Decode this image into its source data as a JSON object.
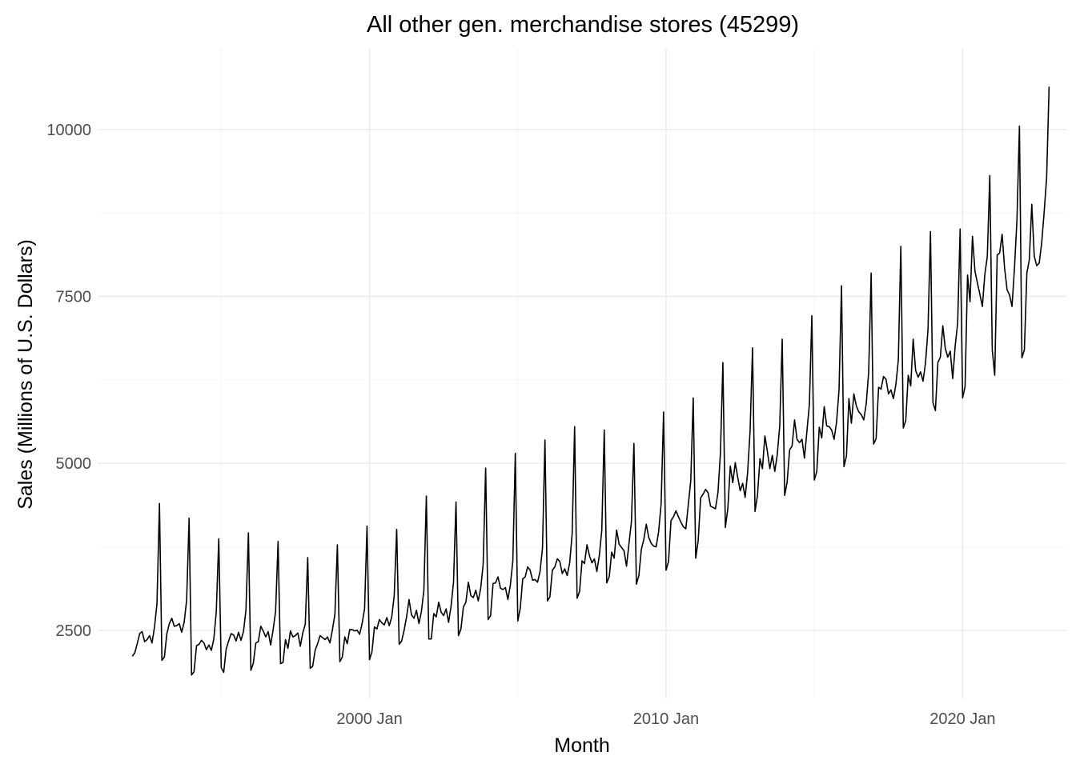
{
  "chart_data": {
    "type": "line",
    "title": "All other gen. merchandise stores (45299)",
    "xlabel": "Month",
    "ylabel": "Sales (Millions of U.S. Dollars)",
    "xlim": [
      "1990-11",
      "2023-07"
    ],
    "ylim": [
      1480,
      11220
    ],
    "x_ticks": [
      {
        "value": "2000-01",
        "label": "2000 Jan"
      },
      {
        "value": "2010-01",
        "label": "2010 Jan"
      },
      {
        "value": "2020-01",
        "label": "2020 Jan"
      }
    ],
    "x_minor_grid": [
      "1995-01",
      "2005-01",
      "2015-01"
    ],
    "y_ticks": [
      {
        "value": 2500,
        "label": "2500"
      },
      {
        "value": 5000,
        "label": "5000"
      },
      {
        "value": 7500,
        "label": "7500"
      },
      {
        "value": 10000,
        "label": "10000"
      }
    ],
    "y_minor_grid": [
      3750,
      6250,
      8750
    ],
    "grid": true,
    "legend": "none",
    "series": [
      {
        "name": "",
        "start": "1992-01",
        "frequency": "monthly",
        "color": "#000000",
        "values": [
          2110,
          2160,
          2300,
          2450,
          2480,
          2330,
          2360,
          2420,
          2310,
          2550,
          2900,
          4400,
          2050,
          2100,
          2450,
          2600,
          2680,
          2560,
          2570,
          2600,
          2470,
          2620,
          2950,
          4180,
          1830,
          1880,
          2270,
          2290,
          2350,
          2310,
          2210,
          2280,
          2200,
          2370,
          2780,
          3870,
          1940,
          1870,
          2220,
          2340,
          2450,
          2430,
          2340,
          2470,
          2350,
          2480,
          2800,
          3960,
          1900,
          2010,
          2310,
          2330,
          2560,
          2490,
          2400,
          2480,
          2280,
          2510,
          2780,
          3830,
          2000,
          2020,
          2360,
          2230,
          2490,
          2400,
          2420,
          2460,
          2260,
          2460,
          2590,
          3590,
          1930,
          1960,
          2200,
          2300,
          2420,
          2390,
          2360,
          2400,
          2310,
          2510,
          2740,
          3780,
          2030,
          2100,
          2400,
          2300,
          2510,
          2510,
          2490,
          2500,
          2440,
          2600,
          2820,
          4060,
          2060,
          2180,
          2550,
          2520,
          2660,
          2610,
          2580,
          2690,
          2570,
          2700,
          3020,
          4010,
          2290,
          2340,
          2500,
          2700,
          2960,
          2730,
          2680,
          2800,
          2600,
          2780,
          3100,
          4510,
          2370,
          2370,
          2750,
          2700,
          2920,
          2770,
          2720,
          2820,
          2620,
          2860,
          3220,
          4420,
          2420,
          2520,
          2850,
          2920,
          3220,
          3020,
          2990,
          3100,
          2940,
          3130,
          3490,
          4930,
          2660,
          2720,
          3200,
          3210,
          3300,
          3130,
          3110,
          3140,
          2960,
          3180,
          3540,
          5150,
          2640,
          2830,
          3270,
          3300,
          3450,
          3400,
          3250,
          3260,
          3220,
          3380,
          3730,
          5350,
          2940,
          3000,
          3400,
          3450,
          3570,
          3530,
          3350,
          3420,
          3320,
          3510,
          3940,
          5550,
          2980,
          3080,
          3540,
          3500,
          3780,
          3620,
          3510,
          3570,
          3380,
          3620,
          4000,
          5500,
          3210,
          3300,
          3670,
          3580,
          4000,
          3790,
          3740,
          3690,
          3460,
          3800,
          4130,
          5300,
          3190,
          3320,
          3710,
          3860,
          4090,
          3890,
          3800,
          3760,
          3750,
          3980,
          4390,
          5770,
          3400,
          3530,
          4140,
          4200,
          4290,
          4200,
          4120,
          4050,
          4020,
          4380,
          4740,
          5980,
          3580,
          3840,
          4480,
          4540,
          4610,
          4560,
          4360,
          4340,
          4320,
          4560,
          5150,
          6510,
          4040,
          4320,
          4960,
          4710,
          5010,
          4790,
          4590,
          4700,
          4490,
          4860,
          5480,
          6730,
          4280,
          4520,
          5070,
          4920,
          5410,
          5180,
          4920,
          5120,
          4880,
          5130,
          5560,
          6860,
          4520,
          4720,
          5200,
          5260,
          5650,
          5360,
          5310,
          5360,
          5080,
          5480,
          5880,
          7210,
          4750,
          4880,
          5540,
          5380,
          5850,
          5560,
          5550,
          5500,
          5360,
          5620,
          6100,
          7660,
          4950,
          5110,
          5970,
          5600,
          6040,
          5860,
          5770,
          5730,
          5650,
          5890,
          6370,
          7850,
          5290,
          5370,
          6140,
          6110,
          6300,
          6260,
          6040,
          6100,
          5970,
          6180,
          6550,
          8250,
          5530,
          5640,
          6320,
          6160,
          6860,
          6390,
          6290,
          6370,
          6230,
          6510,
          7000,
          8470,
          5910,
          5790,
          6510,
          6590,
          7060,
          6720,
          6590,
          6680,
          6270,
          6760,
          7100,
          8510,
          5980,
          6150,
          7820,
          7420,
          8400,
          7880,
          7700,
          7530,
          7350,
          7830,
          8100,
          9310,
          6700,
          6320,
          8120,
          8150,
          8430,
          7920,
          7600,
          7520,
          7350,
          7930,
          8650,
          10050,
          6580,
          6700,
          7850,
          8050,
          8880,
          8100,
          7960,
          8000,
          8300,
          8760,
          9280,
          10640
        ]
      }
    ]
  }
}
